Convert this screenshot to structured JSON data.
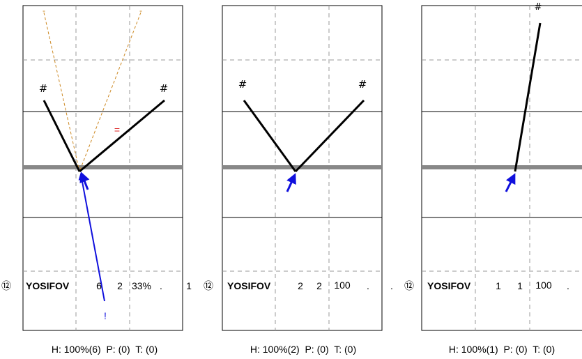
{
  "colors": {
    "frame": "#000000",
    "grid": "#999999",
    "court_band": "#888888",
    "shot": "#000000",
    "guide": "#cc8822",
    "arrow": "#1010dd",
    "mark": "#dd2222"
  },
  "panels": [
    {
      "player_number": "⑫",
      "player_name": "YOSIFOV",
      "stat_1": "6",
      "stat_2": "2",
      "stat_3": "33%",
      "stat_4": ".",
      "stat_5": "1",
      "tops": [
        "#",
        "#"
      ],
      "top_markers": [
        "-",
        "-"
      ],
      "mid_marker": "=",
      "bottom_marker": "!",
      "footer": "H: 100%(6)  P: (0)  T: (0)"
    },
    {
      "player_number": "⑫",
      "player_name": "YOSIFOV",
      "stat_1": "2",
      "stat_2": "2",
      "stat_3": "100",
      "stat_4": ".",
      "stat_5": ".",
      "tops": [
        "#",
        "#"
      ],
      "footer": "H: 100%(2)  P: (0)  T: (0)"
    },
    {
      "player_number": "⑫",
      "player_name": "YOSIFOV",
      "stat_1": "1",
      "stat_2": "1",
      "stat_3": "100",
      "stat_4": ".",
      "tops": [
        "#"
      ],
      "footer": "H: 100%(1)  P: (0)  T: (0)"
    }
  ]
}
